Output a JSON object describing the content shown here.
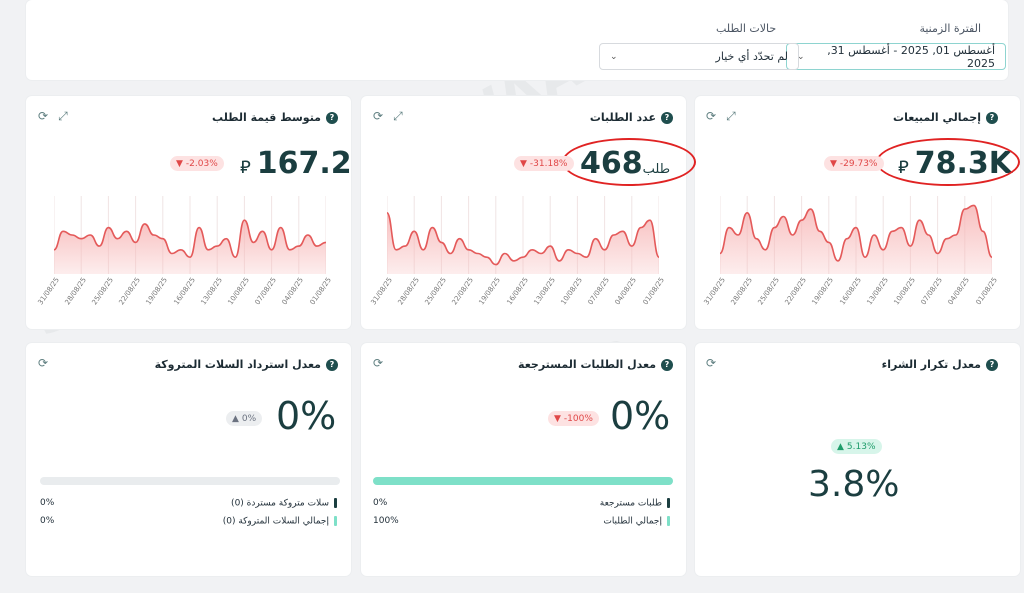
{
  "filters": {
    "period_label": "الفترة الزمنية",
    "period_value": "أغسطس 01, 2025  -  أغسطس 31, 2025",
    "status_label": "حالات الطلب",
    "status_value": "لم تحدّد أي خيار"
  },
  "cards": {
    "total_sales": {
      "title": "إجمالي المبيعات",
      "value": "78.3K",
      "currency_glyph": "⃁",
      "change": "-29.73%",
      "xlabels": [
        "01/08/25",
        "04/08/25",
        "07/08/25",
        "10/08/25",
        "13/08/25",
        "16/08/25",
        "19/08/25",
        "22/08/25",
        "25/08/25",
        "28/08/25",
        "31/08/25"
      ]
    },
    "order_count": {
      "title": "عدد الطلبات",
      "value": "468",
      "unit": "طلب",
      "change": "-31.18%",
      "xlabels": [
        "01/08/25",
        "04/08/25",
        "07/08/25",
        "10/08/25",
        "13/08/25",
        "16/08/25",
        "19/08/25",
        "22/08/25",
        "25/08/25",
        "28/08/25",
        "31/08/25"
      ]
    },
    "avg_order": {
      "title": "متوسط قيمة الطلب",
      "value": "167.2",
      "change": "-2.03%",
      "xlabels": [
        "01/08/25",
        "04/08/25",
        "07/08/25",
        "10/08/25",
        "13/08/25",
        "16/08/25",
        "19/08/25",
        "22/08/25",
        "25/08/25",
        "28/08/25",
        "31/08/25"
      ]
    },
    "repeat_rate": {
      "title": "معدل تكرار الشراء",
      "value": "3.8%",
      "change": "5.13%"
    },
    "returned_rate": {
      "title": "معدل الطلبات المسترجعة",
      "value": "0%",
      "change": "-100%",
      "progress": 0,
      "legend": [
        {
          "label": "طلبات مسترجعة",
          "value": "0%"
        },
        {
          "label": "إجمالي الطلبات",
          "value": "100%"
        }
      ]
    },
    "abandoned_rate": {
      "title": "معدل استرداد السلات المتروكة",
      "value": "0%",
      "change": "0%",
      "progress": 0,
      "legend": [
        {
          "label": "سلات متروكة مستردة (0)",
          "value": "0%"
        },
        {
          "label": "إجمالي السلات المتروكة (0)",
          "value": "0%"
        }
      ]
    }
  },
  "colors": {
    "accent": "#1b3e40",
    "line": "#e45a5a",
    "fill": "#f7b9b9",
    "teal": "#7ee0c8",
    "annotation": "#e02323"
  },
  "icons": [
    "help-icon",
    "refresh-icon",
    "expand-icon",
    "chevron-down-icon",
    "currency-riyal-icon"
  ],
  "watermark": "SIWAAR"
}
